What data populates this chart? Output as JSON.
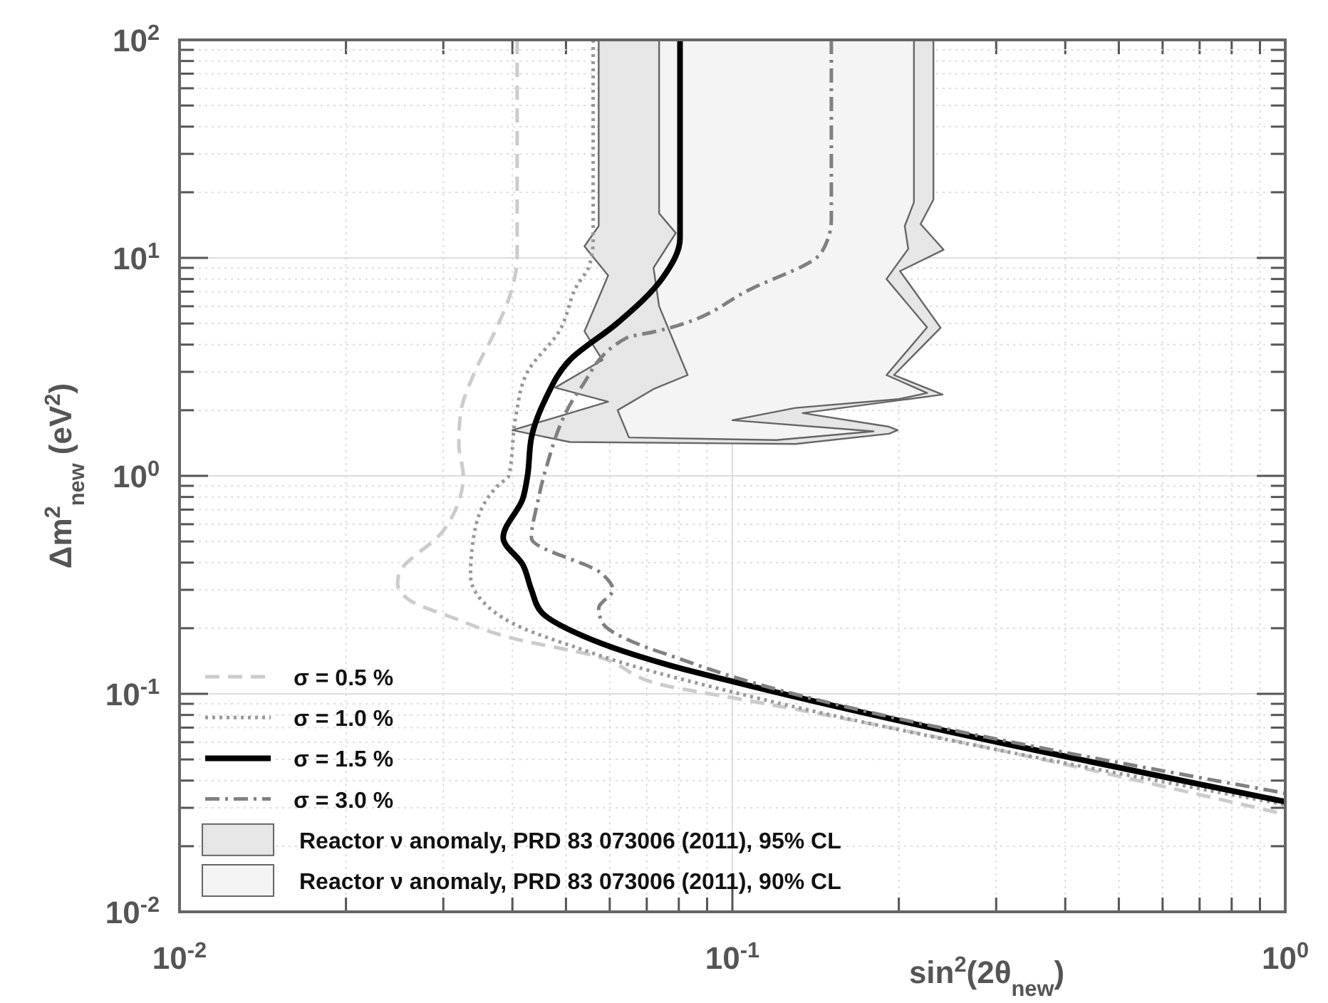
{
  "chart_data": {
    "type": "line",
    "xlabel": "sin$^{2}$(2θ$_{new}$)",
    "ylabel": "Δm$^{2}$$_{new}$ (eV$^{2}$)",
    "log": "xy",
    "grid": true,
    "legend": "bottom left",
    "xlim": [
      0.01,
      1
    ],
    "ylim": [
      0.01,
      100
    ],
    "xticks": [
      {
        "value": 0.01,
        "label": "10$^{-2}$"
      },
      {
        "value": 0.02,
        "label": null
      },
      {
        "value": 0.03,
        "label": null
      },
      {
        "value": 0.04,
        "label": null
      },
      {
        "value": 0.05,
        "label": null
      },
      {
        "value": 0.06,
        "label": null
      },
      {
        "value": 0.07,
        "label": null
      },
      {
        "value": 0.08,
        "label": null
      },
      {
        "value": 0.09,
        "label": null
      },
      {
        "value": 0.1,
        "label": "10$^{-1}$"
      },
      {
        "value": 0.2,
        "label": null
      },
      {
        "value": 0.3,
        "label": null
      },
      {
        "value": 0.4,
        "label": null
      },
      {
        "value": 0.5,
        "label": null
      },
      {
        "value": 0.6,
        "label": null
      },
      {
        "value": 0.7,
        "label": null
      },
      {
        "value": 0.8,
        "label": null
      },
      {
        "value": 0.9,
        "label": null
      },
      {
        "value": 1,
        "label": "10$^{0}$"
      }
    ],
    "yticks": [
      {
        "value": 0.01,
        "label": "10$^{-2}$"
      },
      {
        "value": 0.02,
        "label": null
      },
      {
        "value": 0.03,
        "label": null
      },
      {
        "value": 0.04,
        "label": null
      },
      {
        "value": 0.05,
        "label": null
      },
      {
        "value": 0.06,
        "label": null
      },
      {
        "value": 0.07,
        "label": null
      },
      {
        "value": 0.08,
        "label": null
      },
      {
        "value": 0.09,
        "label": null
      },
      {
        "value": 0.1,
        "label": "10$^{-1}$"
      },
      {
        "value": 0.2,
        "label": null
      },
      {
        "value": 0.3,
        "label": null
      },
      {
        "value": 0.4,
        "label": null
      },
      {
        "value": 0.5,
        "label": null
      },
      {
        "value": 0.6,
        "label": null
      },
      {
        "value": 0.7,
        "label": null
      },
      {
        "value": 0.8,
        "label": null
      },
      {
        "value": 0.9,
        "label": null
      },
      {
        "value": 1,
        "label": "10$^{0}$"
      },
      {
        "value": 2,
        "label": null
      },
      {
        "value": 3,
        "label": null
      },
      {
        "value": 4,
        "label": null
      },
      {
        "value": 5,
        "label": null
      },
      {
        "value": 6,
        "label": null
      },
      {
        "value": 7,
        "label": null
      },
      {
        "value": 8,
        "label": null
      },
      {
        "value": 9,
        "label": null
      },
      {
        "value": 10,
        "label": "10$^{1}$"
      },
      {
        "value": 20,
        "label": null
      },
      {
        "value": 30,
        "label": null
      },
      {
        "value": 40,
        "label": null
      },
      {
        "value": 50,
        "label": null
      },
      {
        "value": 60,
        "label": null
      },
      {
        "value": 70,
        "label": null
      },
      {
        "value": 80,
        "label": null
      },
      {
        "value": 90,
        "label": null
      },
      {
        "value": 100,
        "label": "10$^{2}$"
      }
    ],
    "series": [
      {
        "name": "σ = 0.5 %",
        "line_style": "dashed",
        "color": "#cccccc",
        "x": [
          0.0408,
          0.0408,
          0.0401,
          0.0372,
          0.0342,
          0.0322,
          0.032,
          0.0326,
          0.03,
          0.0249,
          0.0248,
          0.026,
          0.031,
          0.04,
          0.056,
          0.077,
          0.1,
          1
        ],
        "values": [
          100,
          10,
          7.5,
          4.6,
          3.0,
          1.9,
          1.4,
          1.0,
          0.56,
          0.35,
          0.32,
          0.27,
          0.225,
          0.18,
          0.15,
          0.108,
          0.096,
          0.028
        ]
      },
      {
        "name": "σ = 1.0 %",
        "line_style": "dotted",
        "color": "#999999",
        "x": [
          0.056,
          0.056,
          0.055,
          0.0524,
          0.0486,
          0.0426,
          0.0406,
          0.0394,
          0.0378,
          0.0342,
          0.0336,
          0.0362,
          0.0418,
          0.0508,
          0.0656,
          0.1,
          1
        ],
        "values": [
          100,
          12,
          9.1,
          7.5,
          4.6,
          3.0,
          1.9,
          1.0,
          0.91,
          0.56,
          0.35,
          0.25,
          0.2,
          0.167,
          0.135,
          0.102,
          0.031
        ]
      },
      {
        "name": "σ = 1.5 %",
        "line_style": "solid",
        "color": "#000000",
        "x": [
          0.0804,
          0.0804,
          0.0748,
          0.0618,
          0.0508,
          0.0459,
          0.0433,
          0.0426,
          0.0418,
          0.0385,
          0.0418,
          0.0433,
          0.0452,
          0.054,
          0.0771,
          0.1,
          1
        ],
        "values": [
          100,
          12.3,
          8.1,
          5.0,
          3.4,
          2.25,
          1.5,
          1.0,
          0.79,
          0.52,
          0.39,
          0.3,
          0.236,
          0.183,
          0.135,
          0.114,
          0.032
        ]
      },
      {
        "name": "σ = 3.0 %",
        "line_style": "dashdot",
        "color": "#808080",
        "x": [
          0.151,
          0.151,
          0.145,
          0.108,
          0.0727,
          0.0644,
          0.053,
          0.0459,
          0.0444,
          0.0433,
          0.0582,
          0.0608,
          0.0573,
          0.0582,
          0.0684,
          0.0771,
          0.1,
          1
        ],
        "values": [
          100,
          15,
          10.6,
          7.2,
          4.6,
          4.3,
          2.5,
          1.06,
          0.75,
          0.52,
          0.354,
          0.3,
          0.247,
          0.212,
          0.167,
          0.15,
          0.12,
          0.035
        ]
      },
      {
        "name": "Reactor ν anomaly, PRD 83 073006 (2011), 95% CL",
        "type": "area",
        "color": "#e6e6e6",
        "x": [
          0.0573,
          0.0573,
          0.054,
          0.0596,
          0.054,
          0.0582,
          0.0478,
          0.0596,
          0.04,
          0.0508,
          0.13,
          0.192,
          0.199,
          0.192,
          0.134,
          0.24,
          0.196,
          0.238,
          0.201,
          0.241,
          0.219,
          0.231,
          0.231
        ],
        "values": [
          100,
          14,
          11.3,
          8.3,
          4.6,
          3.4,
          2.54,
          2.19,
          1.62,
          1.43,
          1.4,
          1.56,
          1.62,
          1.68,
          1.94,
          2.36,
          2.9,
          4.78,
          8.7,
          10.9,
          14.3,
          18.5,
          100
        ]
      },
      {
        "name": "Reactor ν anomaly, PRD 83 073006 (2011), 90% CL",
        "type": "area",
        "color": "#f4f4f4",
        "x": [
          0.0737,
          0.0737,
          0.079,
          0.072,
          0.0737,
          0.083,
          0.072,
          0.062,
          0.065,
          0.12,
          0.18,
          0.1,
          0.13,
          0.2,
          0.225,
          0.19,
          0.225,
          0.19,
          0.208,
          0.205,
          0.213,
          0.213
        ],
        "values": [
          100,
          16,
          13,
          9,
          6,
          2.9,
          2.5,
          2.0,
          1.5,
          1.46,
          1.6,
          1.8,
          2.05,
          2.25,
          2.4,
          2.9,
          4.8,
          8,
          11,
          14,
          18,
          100
        ]
      }
    ]
  }
}
